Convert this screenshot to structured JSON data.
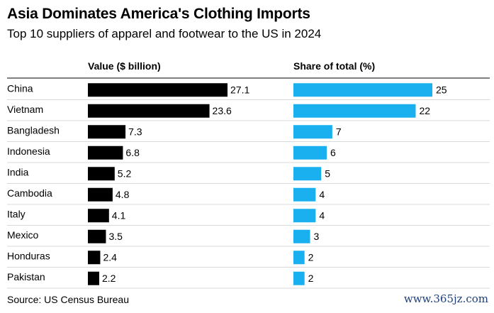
{
  "header": {
    "title": "Asia Dominates America's Clothing Imports",
    "subtitle": "Top 10 suppliers of apparel and footwear to the US in 2024"
  },
  "footer": {
    "source": "Source: US Census Bureau",
    "watermark": "www.365jz.com"
  },
  "colors": {
    "value_bar": "#000000",
    "share_bar": "#1ab0f0",
    "rule": "#000000",
    "gridline": "#d9d9d9"
  },
  "chart_data": [
    {
      "type": "bar",
      "orientation": "horizontal",
      "title": "Value ($ billion)",
      "categories": [
        "China",
        "Vietnam",
        "Bangladesh",
        "Indonesia",
        "India",
        "Cambodia",
        "Italy",
        "Mexico",
        "Honduras",
        "Pakistan"
      ],
      "values": [
        27.1,
        23.6,
        7.3,
        6.8,
        5.2,
        4.8,
        4.1,
        3.5,
        2.4,
        2.2
      ],
      "value_labels": [
        "27.1",
        "23.6",
        "7.3",
        "6.8",
        "5.2",
        "4.8",
        "4.1",
        "3.5",
        "2.4",
        "2.2"
      ]
    },
    {
      "type": "bar",
      "orientation": "horizontal",
      "title": "Share of total (%)",
      "categories": [
        "China",
        "Vietnam",
        "Bangladesh",
        "Indonesia",
        "India",
        "Cambodia",
        "Italy",
        "Mexico",
        "Honduras",
        "Pakistan"
      ],
      "values": [
        25,
        22,
        7,
        6,
        5,
        4,
        4,
        3,
        2,
        2
      ],
      "value_labels": [
        "25",
        "22",
        "7",
        "6",
        "5",
        "4",
        "4",
        "3",
        "2",
        "2"
      ]
    }
  ]
}
